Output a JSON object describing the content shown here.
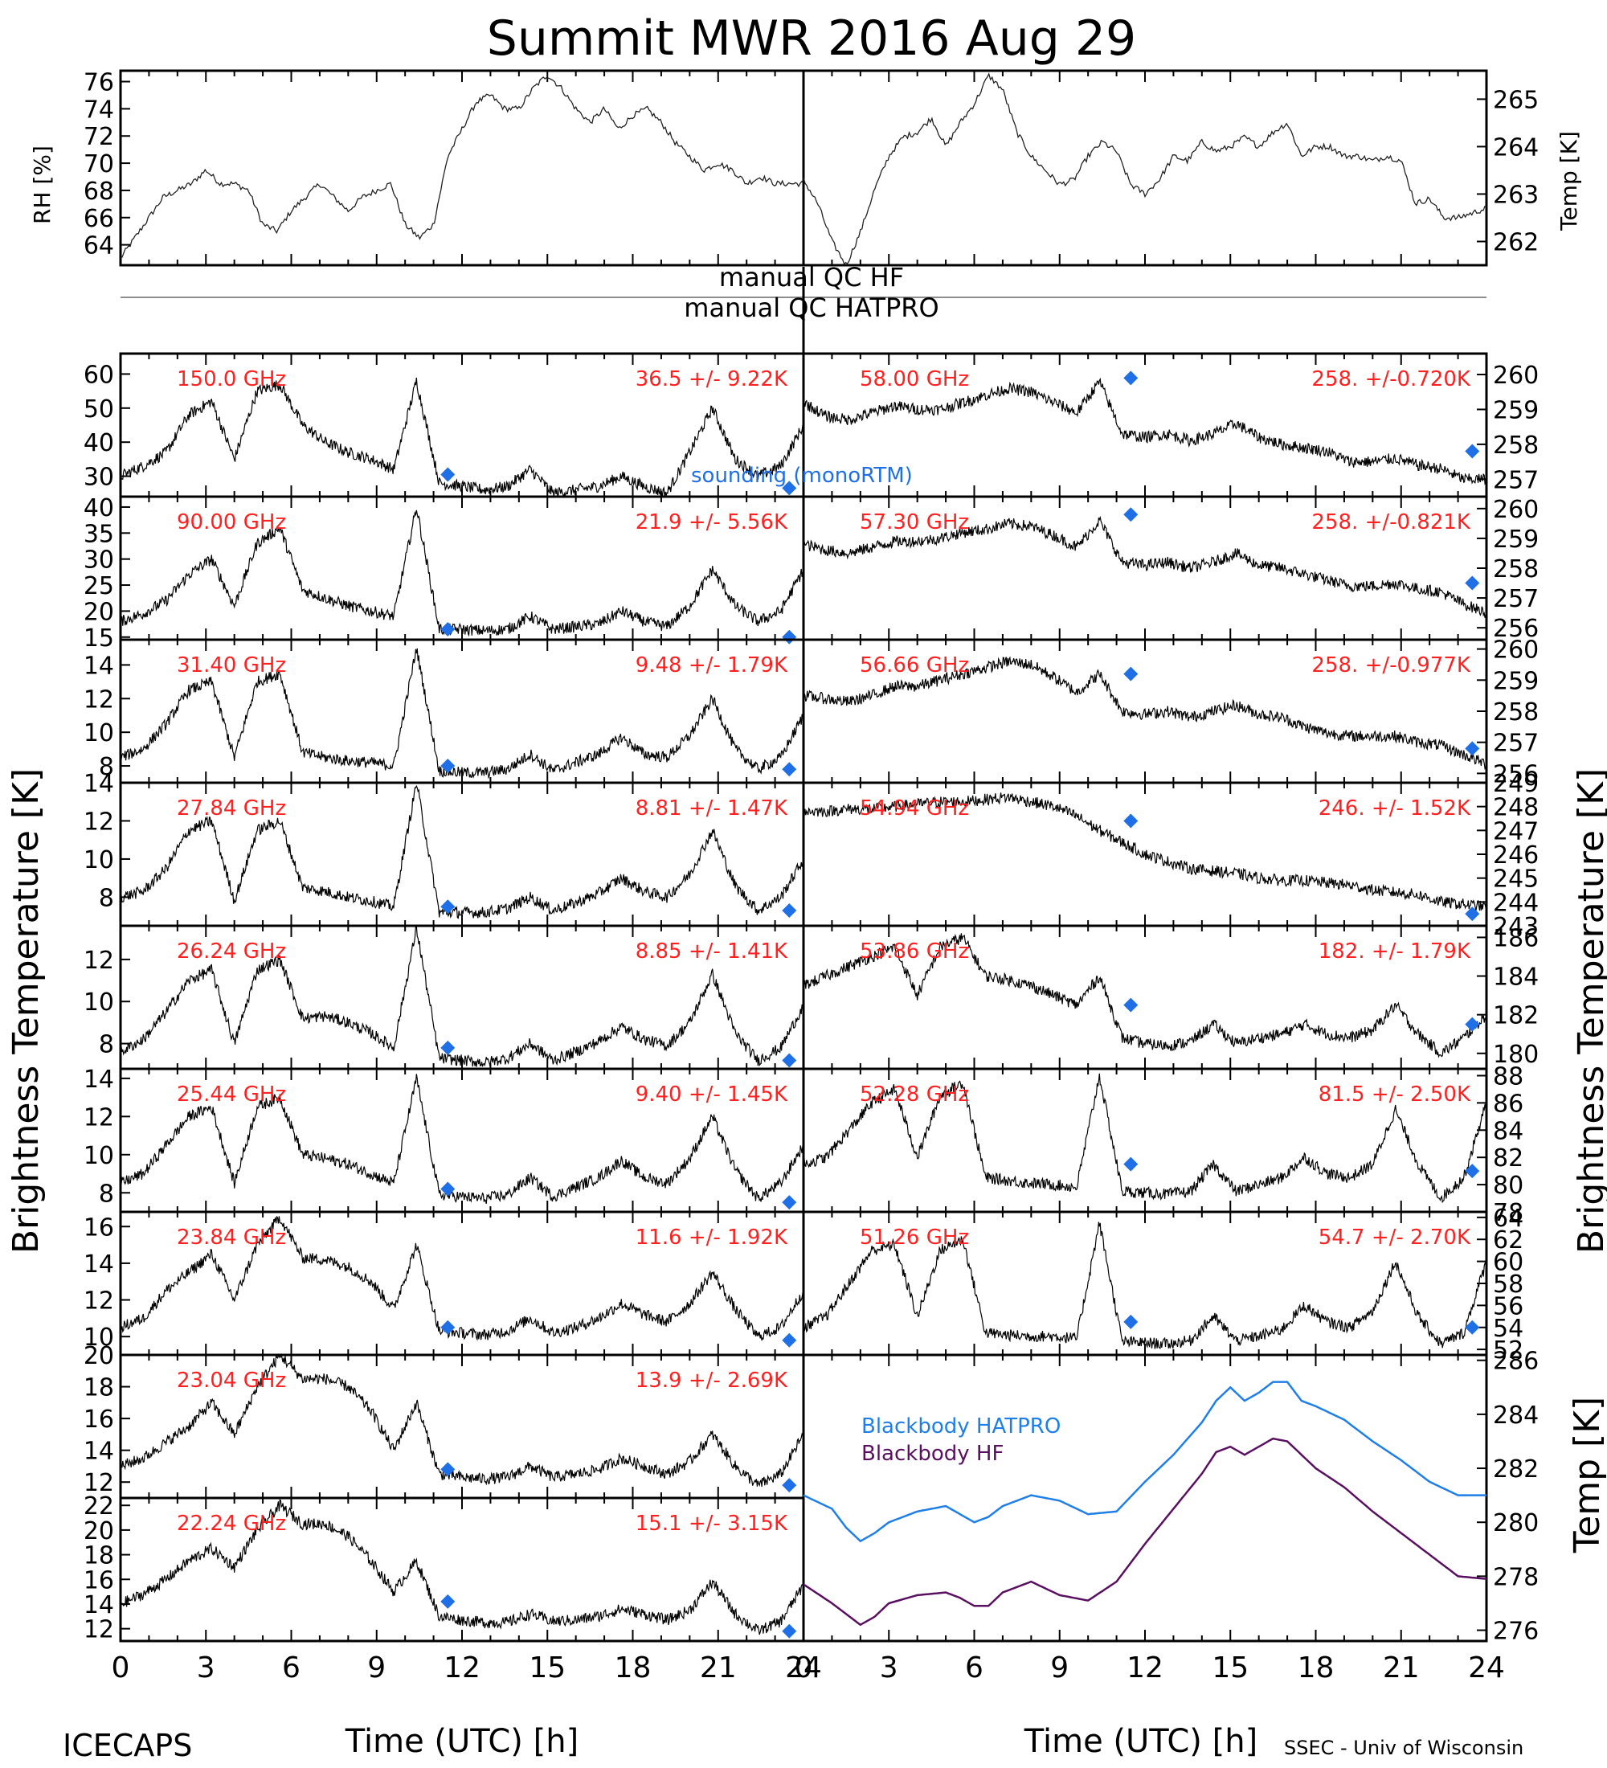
{
  "title": "Summit MWR 2016 Aug 29",
  "footer": {
    "left": "ICECAPS",
    "right": "SSEC - Univ of Wisconsin"
  },
  "xlabel": "Time (UTC) [h]",
  "ylabels": {
    "left_main": "Brightness Temperature [K]",
    "right_main": "Brightness Temperature [K]",
    "rh": "RH [%]",
    "temp": "Temp [K]",
    "bb": "Temp [K]"
  },
  "qc": {
    "hf": "manual QC HF",
    "hatpro": "manual QC HATPRO"
  },
  "legend": {
    "sounding": "sounding (monoRTM)",
    "bb_hatpro": "Blackbody HATPRO",
    "bb_hf": "Blackbody HF"
  },
  "colors": {
    "trace": "#000000",
    "label": "#ff2020",
    "sounding": "#1f6fe6",
    "bb_hatpro": "#1f7fe8",
    "bb_hf": "#5a1060"
  },
  "chart_data": {
    "type": "line",
    "x_unit": "h",
    "xlim": [
      0,
      24
    ],
    "x_ticks": [
      0,
      3,
      6,
      9,
      12,
      15,
      18,
      21,
      24
    ],
    "met": [
      {
        "name": "RH [%]",
        "side": "left",
        "ylim": [
          62.5,
          76.8
        ],
        "ticks": [
          64,
          66,
          68,
          70,
          72,
          74,
          76
        ],
        "x": [
          0,
          0.5,
          1,
          1.5,
          2,
          2.5,
          3,
          3.5,
          4,
          4.5,
          5,
          5.5,
          6,
          6.5,
          7,
          7.5,
          8,
          8.5,
          9,
          9.5,
          10,
          10.5,
          11,
          11.5,
          12,
          12.5,
          13,
          13.5,
          14,
          14.5,
          15,
          15.5,
          16,
          16.5,
          17,
          17.5,
          18,
          18.5,
          19,
          19.5,
          20,
          20.5,
          21,
          21.5,
          22,
          22.5,
          23,
          23.5,
          24
        ],
        "values": [
          63,
          64.5,
          66,
          67.5,
          68,
          68.5,
          69.5,
          68.5,
          68.5,
          68,
          65.5,
          65,
          66.5,
          67.5,
          68.5,
          67.5,
          66.5,
          67.5,
          68,
          68.5,
          65.5,
          64.5,
          65.5,
          70.5,
          72.5,
          74.5,
          75,
          74,
          74,
          75.5,
          76.5,
          75.5,
          74,
          73,
          74,
          72.5,
          73.5,
          74,
          73,
          71.5,
          70.5,
          69.5,
          70,
          69.5,
          68.5,
          69,
          68.5,
          68.5,
          68.5
        ]
      },
      {
        "name": "Temp [K]",
        "side": "right",
        "ylim": [
          261.5,
          265.6
        ],
        "ticks": [
          262,
          263,
          264,
          265
        ],
        "x": [
          0,
          0.5,
          1,
          1.5,
          2,
          2.5,
          3,
          3.5,
          4,
          4.5,
          5,
          5.5,
          6,
          6.5,
          7,
          7.5,
          8,
          8.5,
          9,
          9.5,
          10,
          10.5,
          11,
          11.5,
          12,
          12.5,
          13,
          13.5,
          14,
          14.5,
          15,
          15.5,
          16,
          16.5,
          17,
          17.5,
          18,
          18.5,
          19,
          19.5,
          20,
          20.5,
          21,
          21.5,
          22,
          22.5,
          23,
          23.5,
          24
        ],
        "values": [
          263.3,
          262.8,
          262,
          261.5,
          262.2,
          263.1,
          263.8,
          264.2,
          264.3,
          264.6,
          264,
          264.5,
          264.9,
          265.5,
          265.2,
          264.3,
          263.8,
          263.5,
          263.2,
          263.3,
          263.8,
          264.1,
          263.9,
          263.2,
          263,
          263.3,
          263.8,
          263.7,
          264.1,
          263.9,
          264,
          264.2,
          264,
          264.3,
          264.5,
          263.8,
          264,
          264,
          263.8,
          263.8,
          263.7,
          263.8,
          263.7,
          262.8,
          262.9,
          262.5,
          262.5,
          262.6,
          262.7
        ]
      }
    ],
    "channels_left": [
      {
        "label": "150.0 GHz",
        "stat": "36.5 +/-  9.22K",
        "ylim": [
          24,
          66
        ],
        "ticks": [
          30,
          40,
          50,
          60
        ],
        "base": [
          30,
          33,
          37,
          48,
          52,
          35,
          55,
          57,
          45,
          40,
          37,
          35,
          32,
          58,
          28,
          27,
          26,
          27,
          32,
          25,
          26,
          27,
          30,
          27,
          25,
          37,
          50,
          35,
          30,
          33,
          45
        ],
        "sounding": [
          30.5,
          26.5
        ]
      },
      {
        "label": "90.00 GHz",
        "stat": "21.9 +/-  5.56K",
        "ylim": [
          14.5,
          42
        ],
        "ticks": [
          15,
          20,
          25,
          30,
          35,
          40
        ],
        "base": [
          18,
          19.5,
          22,
          27,
          30,
          21,
          33,
          36,
          24,
          22.5,
          21,
          20,
          19,
          40,
          16.5,
          16.5,
          16.2,
          16.5,
          19,
          16.5,
          17,
          17.5,
          20,
          18,
          17,
          21,
          28,
          21,
          18,
          20,
          28
        ],
        "sounding": [
          16.5,
          15
        ]
      },
      {
        "label": "31.40 GHz",
        "stat": "9.48 +/- 1.79K",
        "ylim": [
          7,
          15.5
        ],
        "ticks": [
          8,
          10,
          12,
          14
        ],
        "base": [
          8.5,
          9,
          10.5,
          12.5,
          13,
          8.5,
          13,
          13.5,
          8.8,
          8.5,
          8.3,
          8.2,
          8,
          15,
          7.7,
          7.6,
          7.6,
          7.8,
          8.7,
          7.7,
          8.2,
          8.7,
          9.7,
          8.7,
          8.5,
          9.8,
          12,
          9,
          7.8,
          8.5,
          11
        ],
        "sounding": [
          8,
          7.8
        ]
      },
      {
        "label": "27.84 GHz",
        "stat": "8.81 +/- 1.47K",
        "ylim": [
          6.5,
          14
        ],
        "ticks": [
          8,
          10,
          12,
          14
        ],
        "base": [
          8,
          8.3,
          9.5,
          11.5,
          12,
          7.8,
          11.5,
          12,
          8.5,
          8.3,
          8,
          7.8,
          7.5,
          14,
          7.2,
          7.2,
          7.2,
          7.4,
          8,
          7.3,
          7.7,
          8.2,
          9,
          8.3,
          8,
          9.2,
          11.5,
          8.6,
          7.3,
          8,
          10
        ],
        "sounding": [
          7.5,
          7.3
        ]
      },
      {
        "label": "26.24 GHz",
        "stat": "8.85 +/- 1.41K",
        "ylim": [
          6.8,
          13.6
        ],
        "ticks": [
          8,
          10,
          12
        ],
        "base": [
          7.6,
          8.2,
          9.5,
          11,
          11.5,
          8,
          11.5,
          12,
          9.2,
          9.3,
          9,
          8.5,
          7.8,
          13.5,
          7.3,
          7.2,
          7.1,
          7.3,
          8,
          7.2,
          7.6,
          8.1,
          8.8,
          8.2,
          7.9,
          9,
          11.3,
          8.5,
          7.2,
          7.8,
          9.8
        ],
        "sounding": [
          7.8,
          7.2
        ]
      },
      {
        "label": "25.44 GHz",
        "stat": "9.40 +/- 1.45K",
        "ylim": [
          7,
          14.5
        ],
        "ticks": [
          8,
          10,
          12,
          14
        ],
        "base": [
          8.5,
          9,
          10.5,
          12,
          12.5,
          8.5,
          12.5,
          13,
          10,
          9.8,
          9.5,
          9,
          8.5,
          14,
          7.9,
          7.8,
          7.7,
          7.9,
          8.8,
          7.8,
          8.3,
          8.8,
          9.7,
          8.8,
          8.5,
          9.8,
          12,
          9.2,
          7.7,
          8.5,
          10.5
        ],
        "sounding": [
          8.2,
          7.5
        ]
      },
      {
        "label": "23.84 GHz",
        "stat": "11.6 +/- 1.92K",
        "ylim": [
          9,
          16.8
        ],
        "ticks": [
          10,
          12,
          14,
          16
        ],
        "base": [
          10.5,
          11,
          12.5,
          13.5,
          14.5,
          12,
          15,
          16.5,
          14.3,
          14.2,
          13.8,
          13,
          11.5,
          15,
          10.3,
          10.2,
          10.1,
          10.3,
          11,
          10.2,
          10.5,
          11,
          11.8,
          11.2,
          10.8,
          11.8,
          13.5,
          11.5,
          10,
          10.5,
          12.5
        ],
        "sounding": [
          10.5,
          9.8
        ]
      },
      {
        "label": "23.04 GHz",
        "stat": "13.9 +/- 2.69K",
        "ylim": [
          11,
          20
        ],
        "ticks": [
          12,
          14,
          16,
          18,
          20
        ],
        "base": [
          13,
          13.5,
          14.5,
          15.5,
          17,
          15,
          18,
          20,
          18.5,
          18.5,
          18,
          16.5,
          14,
          17,
          12.5,
          12.3,
          12.2,
          12.3,
          13,
          12.3,
          12.5,
          12.8,
          13.5,
          13,
          12.5,
          13.3,
          15,
          13,
          11.8,
          12.5,
          15
        ],
        "sounding": [
          12.8,
          11.8
        ]
      },
      {
        "label": "22.24 GHz",
        "stat": "15.1 +/- 3.15K",
        "ylim": [
          11,
          22.6
        ],
        "ticks": [
          12,
          14,
          16,
          18,
          20,
          22
        ],
        "base": [
          14,
          14.8,
          16,
          17.5,
          18.5,
          17,
          20,
          22,
          20.5,
          20.5,
          19.5,
          17.5,
          15,
          17.5,
          13,
          12.7,
          12.5,
          12.5,
          13.2,
          12.6,
          12.7,
          13,
          13.6,
          13.2,
          12.7,
          13.5,
          15.8,
          13.2,
          11.8,
          12.6,
          15.5
        ],
        "sounding": [
          14.2,
          11.8
        ]
      }
    ],
    "channels_right": [
      {
        "label": "58.00 GHz",
        "stat": "258. +/-0.720K",
        "ylim": [
          256.5,
          260.6
        ],
        "ticks": [
          257,
          258,
          259,
          260
        ],
        "base": [
          259.2,
          258.8,
          258.7,
          258.9,
          259.1,
          259,
          259,
          259.2,
          259.4,
          259.6,
          259.5,
          259.2,
          258.9,
          259.8,
          258.3,
          258.2,
          258.3,
          258.1,
          258.3,
          258.6,
          258.2,
          258,
          257.9,
          257.8,
          257.5,
          257.5,
          257.6,
          257.4,
          257.3,
          257,
          257
        ],
        "sounding": [
          259.9,
          257.8
        ]
      },
      {
        "label": "57.30 GHz",
        "stat": "258. +/-0.821K",
        "ylim": [
          255.6,
          260.4
        ],
        "ticks": [
          256,
          257,
          258,
          259,
          260
        ],
        "base": [
          258.8,
          258.6,
          258.5,
          258.7,
          258.9,
          258.9,
          259,
          259.2,
          259.3,
          259.5,
          259.4,
          259.1,
          258.7,
          259.6,
          258.2,
          258.1,
          258.2,
          258,
          258.2,
          258.5,
          258.1,
          258,
          257.8,
          257.6,
          257.4,
          257.4,
          257.5,
          257.3,
          257.2,
          256.8,
          256.5
        ],
        "sounding": [
          259.8,
          257.5
        ]
      },
      {
        "label": "56.66 GHz",
        "stat": "258. +/-0.977K",
        "ylim": [
          255.7,
          260.3
        ],
        "ticks": [
          256,
          257,
          258,
          259,
          260
        ],
        "base": [
          258.5,
          258.4,
          258.3,
          258.5,
          258.8,
          258.8,
          259,
          259.2,
          259.4,
          259.6,
          259.5,
          259.1,
          258.6,
          259.2,
          258,
          257.9,
          258,
          257.8,
          258,
          258.2,
          257.9,
          257.8,
          257.5,
          257.3,
          257.2,
          257.2,
          257.2,
          257,
          256.9,
          256.6,
          256.3
        ],
        "sounding": [
          259.2,
          256.8
        ]
      },
      {
        "label": "54.94 GHz",
        "stat": "246. +/- 1.52K",
        "ylim": [
          243,
          249
        ],
        "ticks": [
          243,
          244,
          245,
          246,
          247,
          248,
          249
        ],
        "base": [
          247.8,
          247.8,
          247.9,
          247.9,
          248,
          248.1,
          248.2,
          248.2,
          248.3,
          248.4,
          248.2,
          248,
          247.6,
          247,
          246.5,
          246,
          245.7,
          245.4,
          245.3,
          245.2,
          245,
          244.9,
          244.9,
          244.8,
          244.7,
          244.5,
          244.4,
          244.3,
          244,
          243.9,
          243.8
        ],
        "sounding": [
          247.4,
          243.5
        ]
      },
      {
        "label": "53.86 GHz",
        "stat": "182. +/- 1.79K",
        "ylim": [
          179.2,
          186.6
        ],
        "ticks": [
          180,
          182,
          184,
          186
        ],
        "base": [
          183.5,
          184,
          184.5,
          185,
          185.5,
          183,
          185.5,
          186,
          184,
          183.8,
          183.5,
          183,
          182.5,
          184,
          180.8,
          180.5,
          180.4,
          180.6,
          181.5,
          180.5,
          180.8,
          181,
          181.5,
          181,
          180.8,
          181.2,
          182.5,
          181,
          180,
          180.8,
          182
        ],
        "sounding": [
          182.5,
          181.5
        ]
      },
      {
        "label": "52.28 GHz",
        "stat": "81.5 +/- 2.50K",
        "ylim": [
          78,
          88.5
        ],
        "ticks": [
          78,
          80,
          82,
          84,
          86,
          88
        ],
        "base": [
          81.5,
          82,
          84,
          86,
          87,
          82,
          86.5,
          87.5,
          80.5,
          80.3,
          80.1,
          80,
          79.8,
          88,
          79.5,
          79.4,
          79.3,
          79.5,
          81.5,
          79.5,
          80,
          80.5,
          82,
          80.8,
          80.5,
          81.5,
          85.5,
          81.5,
          79,
          80.5,
          86
        ],
        "sounding": [
          81.5,
          81
        ]
      },
      {
        "label": "51.26 GHz",
        "stat": "54.7 +/- 2.70K",
        "ylim": [
          51.5,
          64.5
        ],
        "ticks": [
          52,
          54,
          56,
          58,
          60,
          62,
          64
        ],
        "base": [
          54,
          55,
          58,
          61,
          61.5,
          55,
          61,
          62,
          53.5,
          53.3,
          53.2,
          53.2,
          53,
          63.5,
          52.7,
          52.6,
          52.5,
          52.8,
          55,
          52.8,
          53.2,
          53.8,
          56,
          54.5,
          54,
          55.5,
          60,
          55,
          52.5,
          53.5,
          60
        ],
        "sounding": [
          54.5,
          54
        ]
      }
    ],
    "blackbody": {
      "ylim": [
        275.6,
        286.2
      ],
      "ticks": [
        276,
        278,
        280,
        282,
        284,
        286
      ],
      "x": [
        0,
        1,
        1.5,
        2,
        2.5,
        3,
        4,
        5,
        5.5,
        6,
        6.5,
        7,
        8,
        9,
        10,
        11,
        12,
        13,
        14,
        14.5,
        15,
        15.5,
        16,
        16.5,
        17,
        17.5,
        18,
        19,
        20,
        21,
        22,
        23,
        24
      ],
      "hatpro": [
        281,
        280.5,
        279.8,
        279.3,
        279.6,
        280,
        280.4,
        280.6,
        280.3,
        280,
        280.2,
        280.6,
        281,
        280.8,
        280.3,
        280.4,
        281.5,
        282.5,
        283.7,
        284.5,
        285,
        284.5,
        284.8,
        285.2,
        285.2,
        284.5,
        284.3,
        283.8,
        283,
        282.3,
        281.5,
        281,
        281
      ],
      "hf": [
        277.7,
        277,
        276.6,
        276.2,
        276.5,
        277,
        277.3,
        277.4,
        277.2,
        276.9,
        276.9,
        277.4,
        277.8,
        277.3,
        277.1,
        277.8,
        279.2,
        280.5,
        281.8,
        282.6,
        282.8,
        282.5,
        282.8,
        283.1,
        283,
        282.5,
        282,
        281.3,
        280.4,
        279.6,
        278.8,
        278,
        277.9
      ]
    }
  }
}
